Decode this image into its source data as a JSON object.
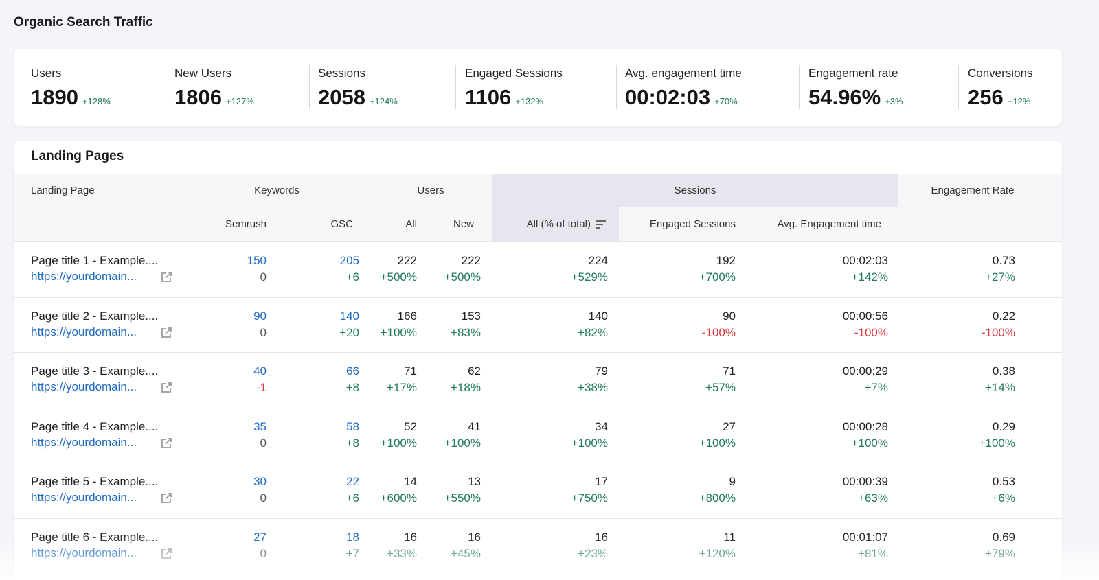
{
  "header": {
    "title": "Organic Search Traffic"
  },
  "metrics": [
    {
      "label": "Users",
      "value": "1890",
      "change": "+128%"
    },
    {
      "label": "New Users",
      "value": "1806",
      "change": "+127%"
    },
    {
      "label": "Sessions",
      "value": "2058",
      "change": "+124%"
    },
    {
      "label": "Engaged Sessions",
      "value": "1106",
      "change": "+132%"
    },
    {
      "label": "Avg. engagement time",
      "value": "00:02:03",
      "change": "+70%"
    },
    {
      "label": "Engagement rate",
      "value": "54.96%",
      "change": "+3%"
    },
    {
      "label": "Conversions",
      "value": "256",
      "change": "+12%"
    }
  ],
  "table": {
    "title": "Landing Pages",
    "group_headers": [
      "Landing Page",
      "Keywords",
      "Users",
      "Sessions",
      "Engagement Rate"
    ],
    "sub_headers": [
      "Semrush",
      "GSC",
      "All",
      "New",
      "All (% of total)",
      "Engaged Sessions",
      "Avg. Engagement time"
    ],
    "rows": [
      {
        "title": "Page title 1 - Example....",
        "url": "https://yourdomain...",
        "cells": [
          {
            "value": "150",
            "change": "0"
          },
          {
            "value": "205",
            "change": "+6"
          },
          {
            "value": "222",
            "change": "+500%"
          },
          {
            "value": "222",
            "change": "+500%"
          },
          {
            "value": "224",
            "change": "+529%"
          },
          {
            "value": "192",
            "change": "+700%"
          },
          {
            "value": "00:02:03",
            "change": "+142%"
          },
          {
            "value": "0.73",
            "change": "+27%"
          }
        ]
      },
      {
        "title": "Page title 2 - Example....",
        "url": "https://yourdomain...",
        "cells": [
          {
            "value": "90",
            "change": "0"
          },
          {
            "value": "140",
            "change": "+20"
          },
          {
            "value": "166",
            "change": "+100%"
          },
          {
            "value": "153",
            "change": "+83%"
          },
          {
            "value": "140",
            "change": "+82%"
          },
          {
            "value": "90",
            "change": "-100%"
          },
          {
            "value": "00:00:56",
            "change": "-100%"
          },
          {
            "value": "0.22",
            "change": "-100%"
          }
        ]
      },
      {
        "title": "Page title 3 - Example....",
        "url": "https://yourdomain...",
        "cells": [
          {
            "value": "40",
            "change": "-1"
          },
          {
            "value": "66",
            "change": "+8"
          },
          {
            "value": "71",
            "change": "+17%"
          },
          {
            "value": "62",
            "change": "+18%"
          },
          {
            "value": "79",
            "change": "+38%"
          },
          {
            "value": "71",
            "change": "+57%"
          },
          {
            "value": "00:00:29",
            "change": "+7%"
          },
          {
            "value": "0.38",
            "change": "+14%"
          }
        ]
      },
      {
        "title": "Page title 4 - Example....",
        "url": "https://yourdomain...",
        "cells": [
          {
            "value": "35",
            "change": "0"
          },
          {
            "value": "58",
            "change": "+8"
          },
          {
            "value": "52",
            "change": "+100%"
          },
          {
            "value": "41",
            "change": "+100%"
          },
          {
            "value": "34",
            "change": "+100%"
          },
          {
            "value": "27",
            "change": "+100%"
          },
          {
            "value": "00:00:28",
            "change": "+100%"
          },
          {
            "value": "0.29",
            "change": "+100%"
          }
        ]
      },
      {
        "title": "Page title 5 - Example....",
        "url": "https://yourdomain...",
        "cells": [
          {
            "value": "30",
            "change": "0"
          },
          {
            "value": "22",
            "change": "+6"
          },
          {
            "value": "14",
            "change": "+600%"
          },
          {
            "value": "13",
            "change": "+550%"
          },
          {
            "value": "17",
            "change": "+750%"
          },
          {
            "value": "9",
            "change": "+800%"
          },
          {
            "value": "00:00:39",
            "change": "+63%"
          },
          {
            "value": "0.53",
            "change": "+6%"
          }
        ]
      },
      {
        "title": "Page title 6 - Example....",
        "url": "https://yourdomain...",
        "cells": [
          {
            "value": "27",
            "change": "0"
          },
          {
            "value": "18",
            "change": "+7"
          },
          {
            "value": "16",
            "change": "+33%"
          },
          {
            "value": "16",
            "change": "+45%"
          },
          {
            "value": "16",
            "change": "+23%"
          },
          {
            "value": "11",
            "change": "+120%"
          },
          {
            "value": "00:01:07",
            "change": "+81%"
          },
          {
            "value": "0.69",
            "change": "+79%"
          }
        ]
      }
    ]
  }
}
